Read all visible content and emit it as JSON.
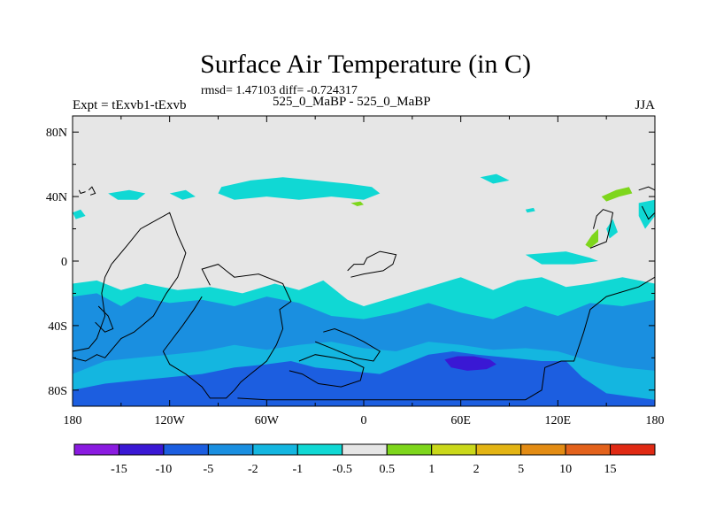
{
  "chart_data": {
    "type": "heatmap",
    "title": "Surface Air Temperature (in C)",
    "subtitle": "rmsd= 1.47103 diff= -0.724317",
    "left_label": "Expt = tExvb1-tExvb",
    "center_label": "525_0_MaBP - 525_0_MaBP",
    "right_label": "JJA",
    "x_axis": {
      "range": [
        -180,
        180
      ],
      "ticks": [
        -180,
        -120,
        -60,
        0,
        60,
        120,
        180
      ],
      "tick_labels": [
        "180",
        "120W",
        "60W",
        "0",
        "60E",
        "120E",
        "180"
      ]
    },
    "y_axis": {
      "range": [
        -90,
        90
      ],
      "ticks": [
        80,
        40,
        0,
        -40,
        -80
      ],
      "tick_labels": [
        "80N",
        "40N",
        "0",
        "40S",
        "80S"
      ]
    },
    "colorbar": {
      "labels": [
        "-15",
        "-10",
        "-5",
        "-2",
        "-1",
        "-0.5",
        "0.5",
        "1",
        "2",
        "5",
        "10",
        "15"
      ],
      "colors": [
        "#8a1be0",
        "#3a18d4",
        "#1c5ee0",
        "#1a8fe0",
        "#14b6e0",
        "#10d8d4",
        "#e6e6e6",
        "#7ed61c",
        "#cad81a",
        "#e3b414",
        "#e38c14",
        "#e3621c",
        "#e02a14"
      ]
    },
    "regions": [
      {
        "level": "-2",
        "color": "#1a8fe0",
        "polygon": [
          [
            -180,
            -18
          ],
          [
            -165,
            -16
          ],
          [
            -150,
            -24
          ],
          [
            -140,
            -18
          ],
          [
            -120,
            -22
          ],
          [
            -100,
            -20
          ],
          [
            -80,
            -24
          ],
          [
            -60,
            -18
          ],
          [
            -40,
            -22
          ],
          [
            -20,
            -30
          ],
          [
            0,
            -32
          ],
          [
            20,
            -28
          ],
          [
            40,
            -22
          ],
          [
            60,
            -28
          ],
          [
            80,
            -32
          ],
          [
            100,
            -24
          ],
          [
            120,
            -30
          ],
          [
            140,
            -20
          ],
          [
            160,
            -22
          ],
          [
            180,
            -18
          ],
          [
            180,
            -90
          ],
          [
            -180,
            -90
          ]
        ]
      },
      {
        "level": "-1",
        "color": "#14b6e0",
        "polygon": [
          [
            -180,
            -90
          ],
          [
            -180,
            -70
          ],
          [
            -160,
            -62
          ],
          [
            -140,
            -60
          ],
          [
            -120,
            -58
          ],
          [
            -100,
            -56
          ],
          [
            -80,
            -52
          ],
          [
            -60,
            -55
          ],
          [
            -40,
            -52
          ],
          [
            -20,
            -50
          ],
          [
            0,
            -54
          ],
          [
            20,
            -56
          ],
          [
            40,
            -50
          ],
          [
            60,
            -52
          ],
          [
            80,
            -55
          ],
          [
            100,
            -54
          ],
          [
            120,
            -56
          ],
          [
            140,
            -62
          ],
          [
            160,
            -66
          ],
          [
            180,
            -68
          ],
          [
            180,
            -90
          ]
        ]
      },
      {
        "level": "-5",
        "color": "#1c5ee0",
        "polygon": [
          [
            -180,
            -90
          ],
          [
            -180,
            -80
          ],
          [
            -160,
            -76
          ],
          [
            -140,
            -74
          ],
          [
            -120,
            -72
          ],
          [
            -100,
            -70
          ],
          [
            -80,
            -66
          ],
          [
            -60,
            -64
          ],
          [
            -45,
            -62
          ],
          [
            -30,
            -66
          ],
          [
            -10,
            -68
          ],
          [
            10,
            -70
          ],
          [
            25,
            -64
          ],
          [
            40,
            -58
          ],
          [
            55,
            -56
          ],
          [
            70,
            -58
          ],
          [
            90,
            -60
          ],
          [
            110,
            -62
          ],
          [
            125,
            -62
          ],
          [
            135,
            -72
          ],
          [
            150,
            -82
          ],
          [
            165,
            -84
          ],
          [
            180,
            -86
          ],
          [
            180,
            -90
          ]
        ]
      },
      {
        "level": "-10",
        "color": "#3a18d4",
        "polygon": [
          [
            50,
            -61
          ],
          [
            58,
            -59
          ],
          [
            68,
            -59
          ],
          [
            78,
            -61
          ],
          [
            82,
            -64
          ],
          [
            76,
            -67
          ],
          [
            64,
            -68
          ],
          [
            54,
            -66
          ]
        ]
      },
      {
        "level": "-0.5",
        "color": "#10d8d4",
        "polygon": [
          [
            -180,
            -14
          ],
          [
            -165,
            -12
          ],
          [
            -150,
            -18
          ],
          [
            -135,
            -14
          ],
          [
            -115,
            -18
          ],
          [
            -95,
            -16
          ],
          [
            -75,
            -20
          ],
          [
            -55,
            -14
          ],
          [
            -40,
            -18
          ],
          [
            -25,
            -12
          ],
          [
            -10,
            -24
          ],
          [
            0,
            -28
          ],
          [
            20,
            -22
          ],
          [
            40,
            -16
          ],
          [
            60,
            -10
          ],
          [
            70,
            -14
          ],
          [
            80,
            -18
          ],
          [
            95,
            -12
          ],
          [
            110,
            -10
          ],
          [
            125,
            -16
          ],
          [
            140,
            -14
          ],
          [
            160,
            -10
          ],
          [
            170,
            -12
          ],
          [
            180,
            -14
          ],
          [
            180,
            -24
          ],
          [
            160,
            -28
          ],
          [
            140,
            -26
          ],
          [
            120,
            -34
          ],
          [
            100,
            -28
          ],
          [
            80,
            -36
          ],
          [
            60,
            -32
          ],
          [
            40,
            -26
          ],
          [
            20,
            -32
          ],
          [
            0,
            -36
          ],
          [
            -20,
            -34
          ],
          [
            -40,
            -26
          ],
          [
            -60,
            -22
          ],
          [
            -80,
            -28
          ],
          [
            -100,
            -24
          ],
          [
            -120,
            -26
          ],
          [
            -140,
            -22
          ],
          [
            -150,
            -28
          ],
          [
            -165,
            -20
          ],
          [
            -180,
            -22
          ]
        ]
      },
      {
        "level": "-0.5",
        "color": "#10d8d4",
        "polygon": [
          [
            -88,
            46
          ],
          [
            -70,
            50
          ],
          [
            -50,
            52
          ],
          [
            -30,
            50
          ],
          [
            -10,
            48
          ],
          [
            5,
            46
          ],
          [
            10,
            42
          ],
          [
            0,
            38
          ],
          [
            -20,
            40
          ],
          [
            -40,
            38
          ],
          [
            -60,
            40
          ],
          [
            -80,
            38
          ],
          [
            -90,
            42
          ]
        ]
      },
      {
        "level": "-0.5",
        "color": "#10d8d4",
        "polygon": [
          [
            -158,
            42
          ],
          [
            -145,
            44
          ],
          [
            -135,
            42
          ],
          [
            -140,
            38
          ],
          [
            -152,
            38
          ]
        ]
      },
      {
        "level": "-0.5",
        "color": "#10d8d4",
        "polygon": [
          [
            -120,
            42
          ],
          [
            -110,
            44
          ],
          [
            -104,
            40
          ],
          [
            -112,
            38
          ]
        ]
      },
      {
        "level": "-0.5",
        "color": "#10d8d4",
        "polygon": [
          [
            72,
            52
          ],
          [
            82,
            54
          ],
          [
            90,
            50
          ],
          [
            80,
            48
          ]
        ]
      },
      {
        "level": "-0.5",
        "color": "#10d8d4",
        "polygon": [
          [
            170,
            36
          ],
          [
            180,
            38
          ],
          [
            180,
            28
          ],
          [
            174,
            20
          ],
          [
            170,
            28
          ]
        ]
      },
      {
        "level": "-0.5",
        "color": "#10d8d4",
        "polygon": [
          [
            100,
            4
          ],
          [
            125,
            6
          ],
          [
            140,
            2
          ],
          [
            145,
            0
          ],
          [
            130,
            -2
          ],
          [
            110,
            -2
          ]
        ]
      },
      {
        "level": "-0.5",
        "color": "#10d8d4",
        "polygon": [
          [
            150,
            20
          ],
          [
            154,
            26
          ],
          [
            157,
            18
          ],
          [
            152,
            14
          ]
        ]
      },
      {
        "level": "-0.5",
        "color": "#10d8d4",
        "polygon": [
          [
            100,
            32
          ],
          [
            105,
            33
          ],
          [
            106,
            31
          ],
          [
            101,
            30
          ]
        ]
      },
      {
        "level": "-0.5",
        "color": "#10d8d4",
        "polygon": [
          [
            -180,
            30
          ],
          [
            -175,
            32
          ],
          [
            -172,
            28
          ],
          [
            -178,
            26
          ]
        ]
      },
      {
        "level": "1",
        "color": "#7ed61c",
        "polygon": [
          [
            -8,
            36
          ],
          [
            -2,
            37
          ],
          [
            0,
            35
          ],
          [
            -4,
            34
          ]
        ]
      },
      {
        "level": "1",
        "color": "#7ed61c",
        "polygon": [
          [
            147,
            40
          ],
          [
            156,
            44
          ],
          [
            164,
            46
          ],
          [
            166,
            42
          ],
          [
            158,
            40
          ],
          [
            150,
            37
          ]
        ]
      },
      {
        "level": "1",
        "color": "#7ed61c",
        "polygon": [
          [
            137,
            10
          ],
          [
            141,
            16
          ],
          [
            145,
            20
          ],
          [
            145,
            12
          ],
          [
            140,
            8
          ]
        ]
      }
    ],
    "coastlines": [
      [
        [
          -180,
          -60
        ],
        [
          -172,
          -62
        ],
        [
          -165,
          -58
        ],
        [
          -160,
          -60
        ],
        [
          -150,
          -48
        ],
        [
          -142,
          -44
        ],
        [
          -130,
          -34
        ],
        [
          -122,
          -20
        ],
        [
          -115,
          -10
        ],
        [
          -110,
          5
        ],
        [
          -115,
          16
        ],
        [
          -120,
          30
        ],
        [
          -138,
          20
        ],
        [
          -146,
          10
        ],
        [
          -156,
          -2
        ],
        [
          -160,
          -10
        ],
        [
          -162,
          -20
        ],
        [
          -160,
          -34
        ],
        [
          -165,
          -48
        ],
        [
          -170,
          -54
        ],
        [
          -180,
          -56
        ]
      ],
      [
        [
          -180,
          -90
        ],
        [
          -180,
          -60
        ]
      ],
      [
        [
          -95,
          -15
        ],
        [
          -100,
          -5
        ],
        [
          -90,
          -2
        ],
        [
          -80,
          -10
        ],
        [
          -65,
          -8
        ],
        [
          -50,
          -14
        ],
        [
          -45,
          -25
        ],
        [
          -52,
          -30
        ],
        [
          -50,
          -42
        ],
        [
          -54,
          -52
        ],
        [
          -60,
          -62
        ],
        [
          -70,
          -70
        ],
        [
          -76,
          -75
        ],
        [
          -80,
          -80
        ],
        [
          -85,
          -85
        ],
        [
          -95,
          -85
        ],
        [
          -100,
          -78
        ],
        [
          -110,
          -70
        ],
        [
          -120,
          -64
        ],
        [
          -124,
          -56
        ],
        [
          -118,
          -48
        ],
        [
          -112,
          -40
        ],
        [
          -105,
          -30
        ],
        [
          -100,
          -22
        ]
      ],
      [
        [
          -78,
          -85
        ],
        [
          -60,
          -86
        ],
        [
          -20,
          -86
        ],
        [
          20,
          -86
        ],
        [
          60,
          -86
        ],
        [
          100,
          -86
        ],
        [
          110,
          -80
        ],
        [
          112,
          -66
        ],
        [
          122,
          -62
        ],
        [
          130,
          -62
        ],
        [
          136,
          -44
        ],
        [
          140,
          -30
        ],
        [
          150,
          -22
        ],
        [
          170,
          -16
        ],
        [
          180,
          -10
        ]
      ],
      [
        [
          -40,
          -62
        ],
        [
          -30,
          -58
        ],
        [
          -18,
          -60
        ],
        [
          -8,
          -62
        ],
        [
          0,
          -66
        ],
        [
          -2,
          -74
        ],
        [
          -14,
          -78
        ],
        [
          -28,
          -76
        ],
        [
          -38,
          -70
        ],
        [
          -46,
          -68
        ]
      ],
      [
        [
          -25,
          -44
        ],
        [
          -18,
          -42
        ],
        [
          -8,
          -46
        ],
        [
          0,
          -50
        ],
        [
          10,
          -56
        ],
        [
          6,
          -62
        ],
        [
          -6,
          -60
        ],
        [
          -20,
          -54
        ],
        [
          -30,
          -50
        ]
      ],
      [
        [
          -10,
          -6
        ],
        [
          -6,
          -2
        ],
        [
          0,
          -2
        ],
        [
          2,
          2
        ],
        [
          10,
          6
        ],
        [
          20,
          4
        ],
        [
          18,
          -2
        ],
        [
          12,
          -6
        ],
        [
          0,
          -8
        ],
        [
          -8,
          -10
        ]
      ],
      [
        [
          140,
          8
        ],
        [
          150,
          12
        ],
        [
          152,
          20
        ],
        [
          154,
          30
        ],
        [
          148,
          32
        ],
        [
          144,
          28
        ],
        [
          142,
          20
        ]
      ],
      [
        [
          170,
          44
        ],
        [
          176,
          46
        ],
        [
          180,
          44
        ],
        [
          180,
          30
        ],
        [
          176,
          26
        ],
        [
          172,
          34
        ]
      ],
      [
        [
          -170,
          44
        ],
        [
          -168,
          46
        ],
        [
          -166,
          42
        ],
        [
          -169,
          41
        ]
      ],
      [
        [
          -176,
          44
        ],
        [
          -175,
          42
        ],
        [
          -172,
          43
        ]
      ],
      [
        [
          -164,
          -28
        ],
        [
          -158,
          -34
        ],
        [
          -155,
          -42
        ],
        [
          -160,
          -44
        ],
        [
          -166,
          -38
        ]
      ]
    ]
  }
}
